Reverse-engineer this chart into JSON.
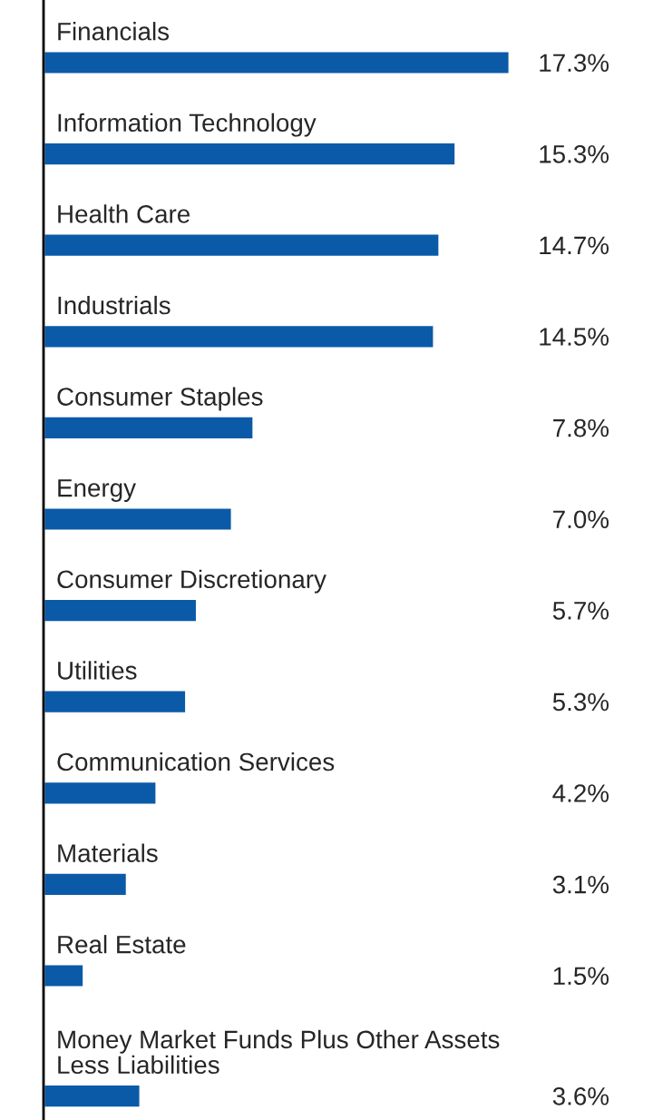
{
  "chart_data": {
    "type": "bar",
    "orientation": "horizontal",
    "categories": [
      "Financials",
      "Information Technology",
      "Health Care",
      "Industrials",
      "Consumer Staples",
      "Energy",
      "Consumer Discretionary",
      "Utilities",
      "Communication Services",
      "Materials",
      "Real Estate",
      "Money Market Funds Plus Other Assets\nLess Liabilities"
    ],
    "values": [
      17.3,
      15.3,
      14.7,
      14.5,
      7.8,
      7.0,
      5.7,
      5.3,
      4.2,
      3.1,
      1.5,
      3.6
    ],
    "value_labels": [
      "17.3%",
      "15.3%",
      "14.7%",
      "14.5%",
      "7.8%",
      "7.0%",
      "5.7%",
      "5.3%",
      "4.2%",
      "3.1%",
      "1.5%",
      "3.6%"
    ],
    "color": "#0a5aa8"
  }
}
